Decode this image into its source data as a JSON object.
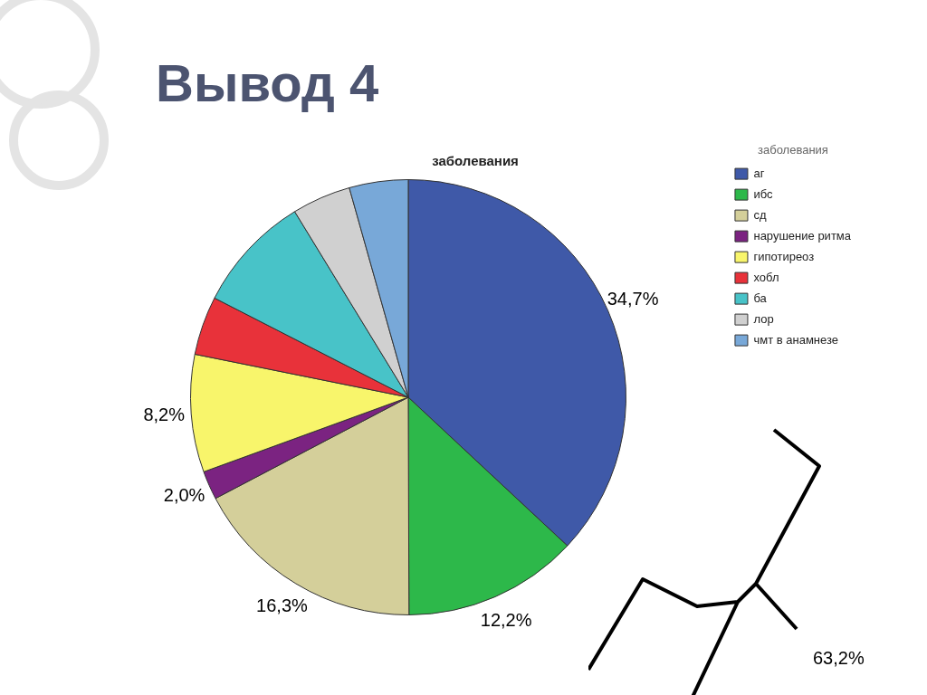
{
  "chart_data": {
    "type": "pie",
    "title": "Вывод 4",
    "subtitle": "заболевания",
    "legend_title": "заболевания",
    "legend": "top right",
    "categories": [
      "аг",
      "ибс",
      "сд",
      "нарушение ритма",
      "гипотиреоз",
      "хобл",
      "ба",
      "лор",
      "чмт в анамнезе"
    ],
    "values": [
      34.7,
      12.2,
      16.3,
      2.0,
      8.2,
      4.1,
      8.2,
      4.1,
      4.1
    ],
    "value_labels": [
      "34,7%",
      "12,2%",
      "16,3%",
      "2,0%",
      "8,2%",
      null,
      null,
      null,
      null
    ],
    "colors": [
      "#3f59a8",
      "#2db84a",
      "#d4cf9a",
      "#7b2381",
      "#f8f56b",
      "#e8323a",
      "#48c3c8",
      "#d0d0d0",
      "#78a8d8"
    ],
    "annotations": [
      "63,2%"
    ]
  }
}
